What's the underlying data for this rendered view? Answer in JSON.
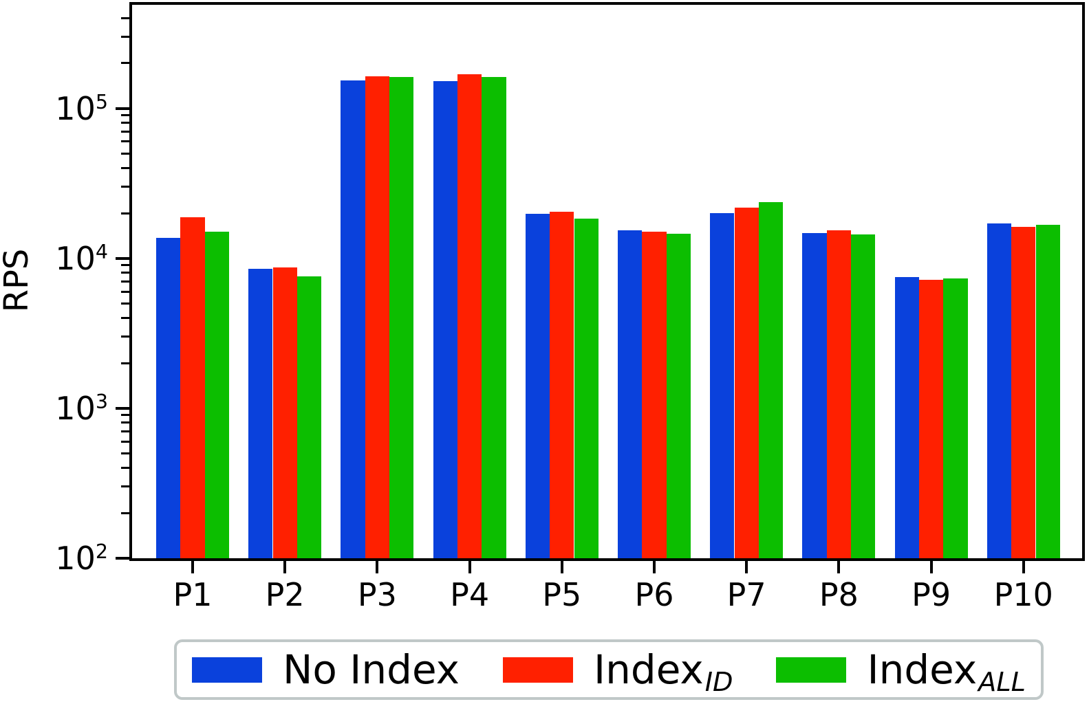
{
  "figure": {
    "background": "#ffffff",
    "axis_color": "#000000"
  },
  "chart_data": {
    "type": "bar",
    "title": "",
    "xlabel": "",
    "ylabel": "RPS",
    "yscale": "log",
    "ylim": [
      100,
      490000
    ],
    "grid": false,
    "legend_position": "bottom",
    "categories": [
      "P1",
      "P2",
      "P3",
      "P4",
      "P5",
      "P6",
      "P7",
      "P8",
      "P9",
      "P10"
    ],
    "series": [
      {
        "name": "No Index",
        "label_main": "No Index",
        "label_sub": "",
        "color": "#0a41dc",
        "values": [
          13700,
          8500,
          154000,
          152000,
          19700,
          15300,
          20100,
          14700,
          7500,
          17100
        ]
      },
      {
        "name": "Index_ID",
        "label_main": "Index",
        "label_sub": "ID",
        "color": "#ff2000",
        "values": [
          18800,
          8700,
          164000,
          168000,
          20400,
          15100,
          21700,
          15400,
          7200,
          16200
        ]
      },
      {
        "name": "Index_ALL",
        "label_main": "Index",
        "label_sub": "ALL",
        "color": "#0cbe00",
        "values": [
          15100,
          7600,
          161000,
          162000,
          18300,
          14600,
          23800,
          14500,
          7350,
          16800
        ]
      }
    ],
    "y_ticks": {
      "base": "10",
      "exponents": [
        "2",
        "3",
        "4",
        "5"
      ]
    },
    "legend_border_color": "#c0c8c8"
  }
}
